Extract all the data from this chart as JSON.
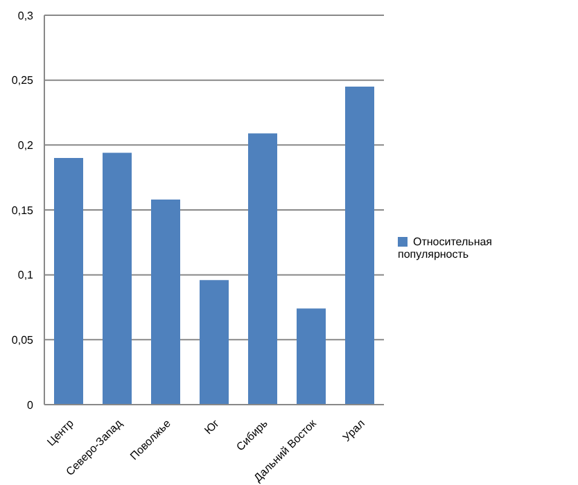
{
  "chart_data": {
    "type": "bar",
    "categories": [
      "Центр",
      "Северо-Запад",
      "Поволжье",
      "Юг",
      "Сибирь",
      "Дальний Восток",
      "Урал"
    ],
    "series": [
      {
        "name": "Относительная популярность",
        "color": "#4f81bd",
        "values": [
          0.19,
          0.194,
          0.158,
          0.096,
          0.209,
          0.074,
          0.245
        ]
      }
    ],
    "ylim": [
      0,
      0.3
    ],
    "yticks": [
      0,
      {
        "value": 0.05,
        "label": "0,05"
      },
      {
        "value": 0.1,
        "label": "0,1"
      },
      {
        "value": 0.15,
        "label": "0,15"
      },
      {
        "value": 0.2,
        "label": "0,2"
      },
      {
        "value": 0.25,
        "label": "0,25"
      },
      {
        "value": 0.3,
        "label": "0,3"
      }
    ],
    "grid": "y",
    "legend": "right"
  }
}
